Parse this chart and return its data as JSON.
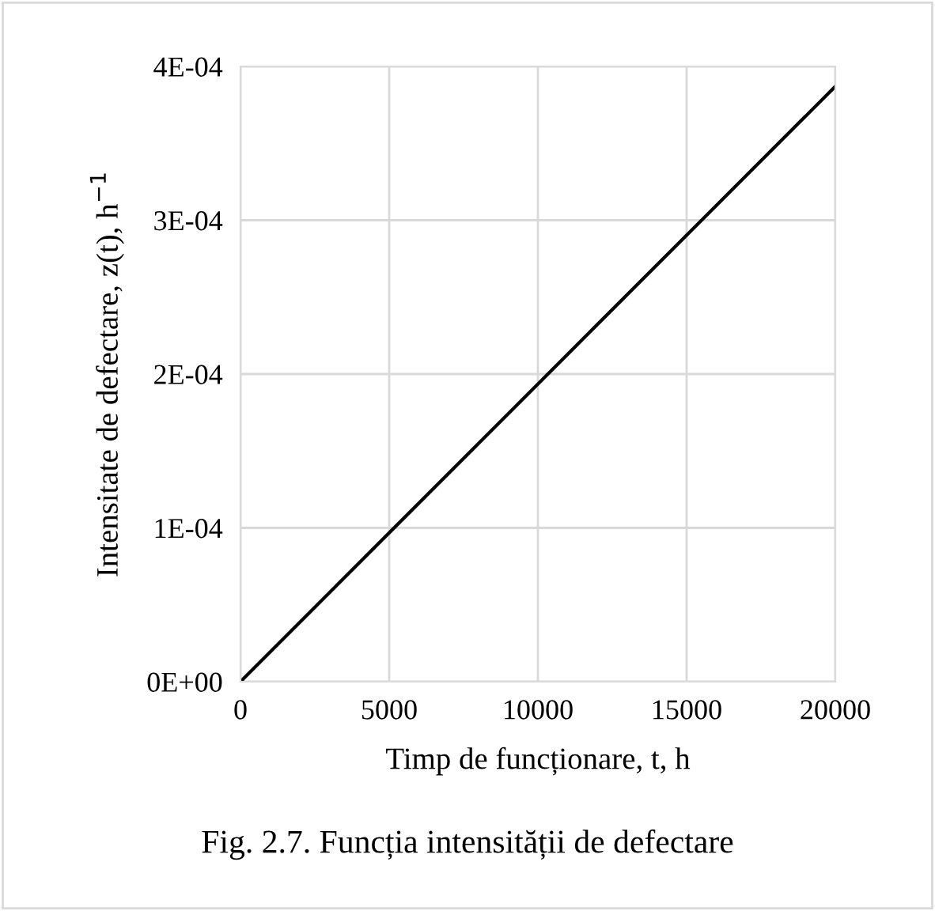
{
  "chart_data": {
    "type": "line",
    "title": "Fig. 2.7. Funcția intensității de defectare",
    "xlabel": "Timp de funcționare, t, h",
    "ylabel": "Intensitate de defectare, z(t), h$^{−1}$",
    "x": [
      0,
      20000
    ],
    "series": [
      {
        "color": "#000000",
        "values": [
          0,
          0.000387
        ]
      }
    ],
    "xlim": [
      0,
      20000
    ],
    "xticks": [
      0,
      5000,
      10000,
      15000,
      20000
    ],
    "ylim": [
      0,
      0.0004
    ],
    "yticks": [
      {
        "value": 0,
        "label": "0E+00"
      },
      {
        "value": 0.0001,
        "label": "1E-04"
      },
      {
        "value": 0.0002,
        "label": "2E-04"
      },
      {
        "value": 0.0003,
        "label": "3E-04"
      },
      {
        "value": 0.0004,
        "label": "4E-04"
      }
    ],
    "grid": true,
    "marker": "none",
    "line_style": "solid"
  }
}
